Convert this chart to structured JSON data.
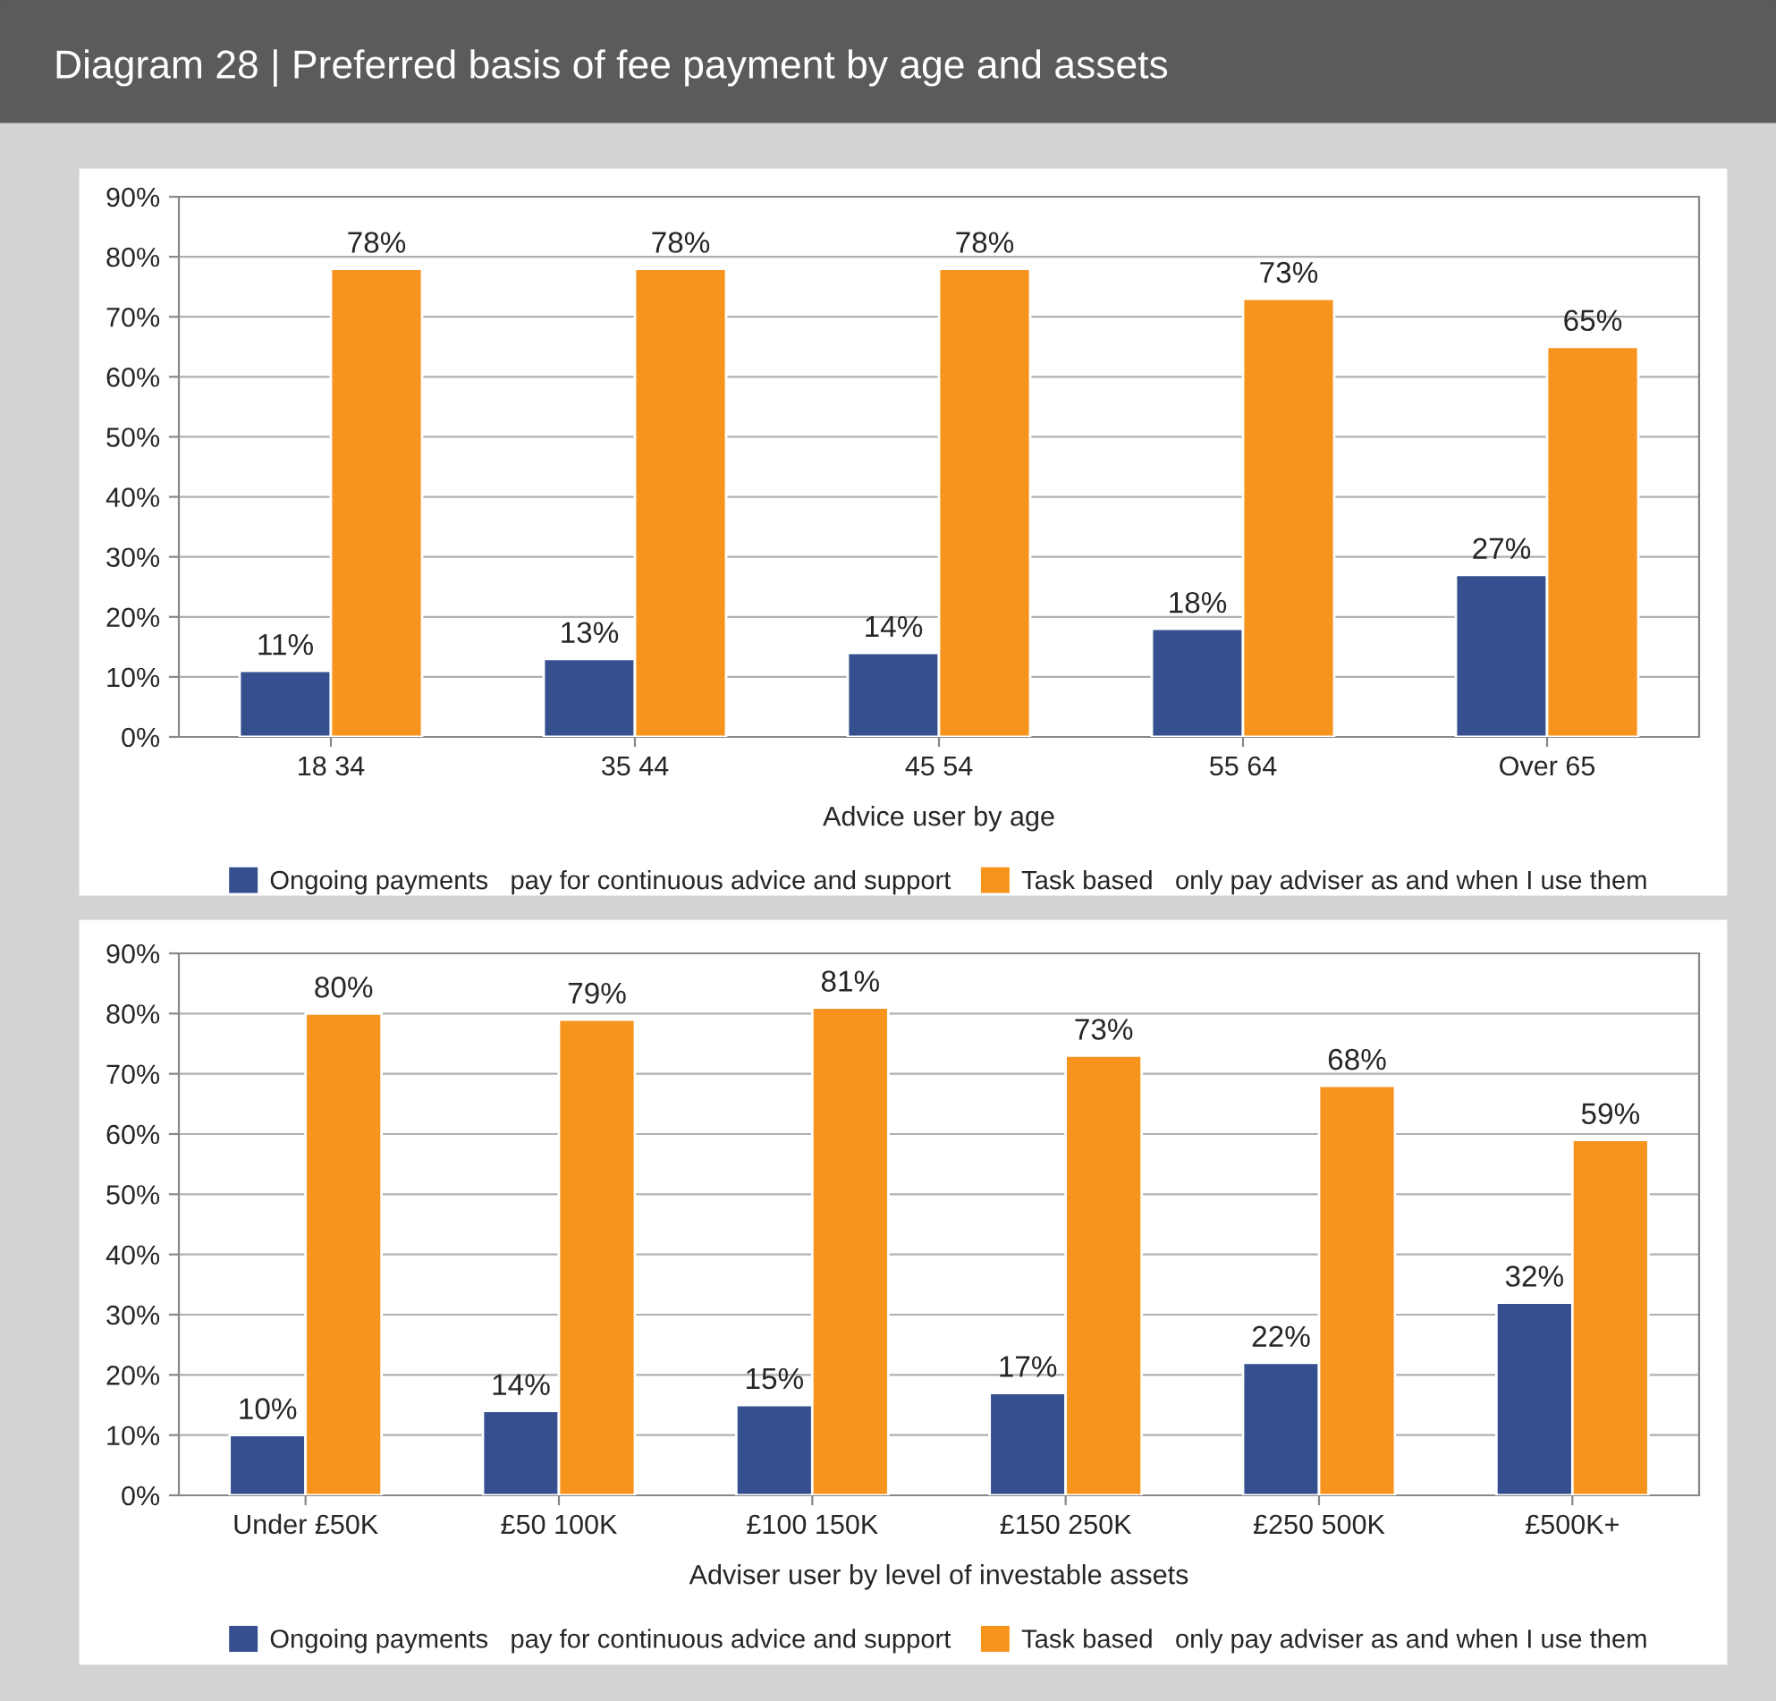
{
  "chart_data": [
    {
      "type": "bar",
      "title": "Diagram 28 | Preferred basis of fee payment by age and assets",
      "xlabel": "Advice user by age",
      "categories": [
        "18 34",
        "35 44",
        "45 54",
        "55 64",
        "Over 65"
      ],
      "series": [
        {
          "name": "Ongoing payments   pay for continuous advice and support",
          "color": "#354f8f",
          "values": [
            11,
            13,
            14,
            18,
            27
          ],
          "value_labels": [
            "11%",
            "13%",
            "14%",
            "18%",
            "27%"
          ]
        },
        {
          "name": "Task based   only pay adviser as and when I use them",
          "color": "#f7941d",
          "values": [
            78,
            78,
            78,
            73,
            65
          ],
          "value_labels": [
            "78%",
            "78%",
            "78%",
            "73%",
            "65%"
          ]
        }
      ],
      "ylim": [
        0,
        90
      ],
      "yticks": [
        {
          "value": 0,
          "label": "0%"
        },
        {
          "value": 10,
          "label": "10%"
        },
        {
          "value": 20,
          "label": "20%"
        },
        {
          "value": 30,
          "label": "30%"
        },
        {
          "value": 40,
          "label": "40%"
        },
        {
          "value": 50,
          "label": "50%"
        },
        {
          "value": 60,
          "label": "60%"
        },
        {
          "value": 70,
          "label": "70%"
        },
        {
          "value": 80,
          "label": "80%"
        },
        {
          "value": 90,
          "label": "90%"
        }
      ],
      "grid": "y",
      "legend": "bottom"
    },
    {
      "type": "bar",
      "xlabel": "Adviser user by level of investable assets",
      "categories": [
        "Under £50K",
        "£50 100K",
        "£100 150K",
        "£150 250K",
        "£250 500K",
        "£500K+"
      ],
      "series": [
        {
          "name": "Ongoing payments   pay for continuous advice and support",
          "color": "#354f8f",
          "values": [
            10,
            14,
            15,
            17,
            22,
            32
          ],
          "value_labels": [
            "10%",
            "14%",
            "15%",
            "17%",
            "22%",
            "32%"
          ]
        },
        {
          "name": "Task based   only pay adviser as and when I use them",
          "color": "#f7941d",
          "values": [
            80,
            79,
            81,
            73,
            68,
            59
          ],
          "value_labels": [
            "80%",
            "79%",
            "81%",
            "73%",
            "68%",
            "59%"
          ]
        }
      ],
      "ylim": [
        0,
        90
      ],
      "yticks": [
        {
          "value": 0,
          "label": "0%"
        },
        {
          "value": 10,
          "label": "10%"
        },
        {
          "value": 20,
          "label": "20%"
        },
        {
          "value": 30,
          "label": "30%"
        },
        {
          "value": 40,
          "label": "40%"
        },
        {
          "value": 50,
          "label": "50%"
        },
        {
          "value": 60,
          "label": "60%"
        },
        {
          "value": 70,
          "label": "70%"
        },
        {
          "value": 80,
          "label": "80%"
        },
        {
          "value": 90,
          "label": "90%"
        }
      ],
      "grid": "y",
      "legend": "bottom"
    }
  ]
}
